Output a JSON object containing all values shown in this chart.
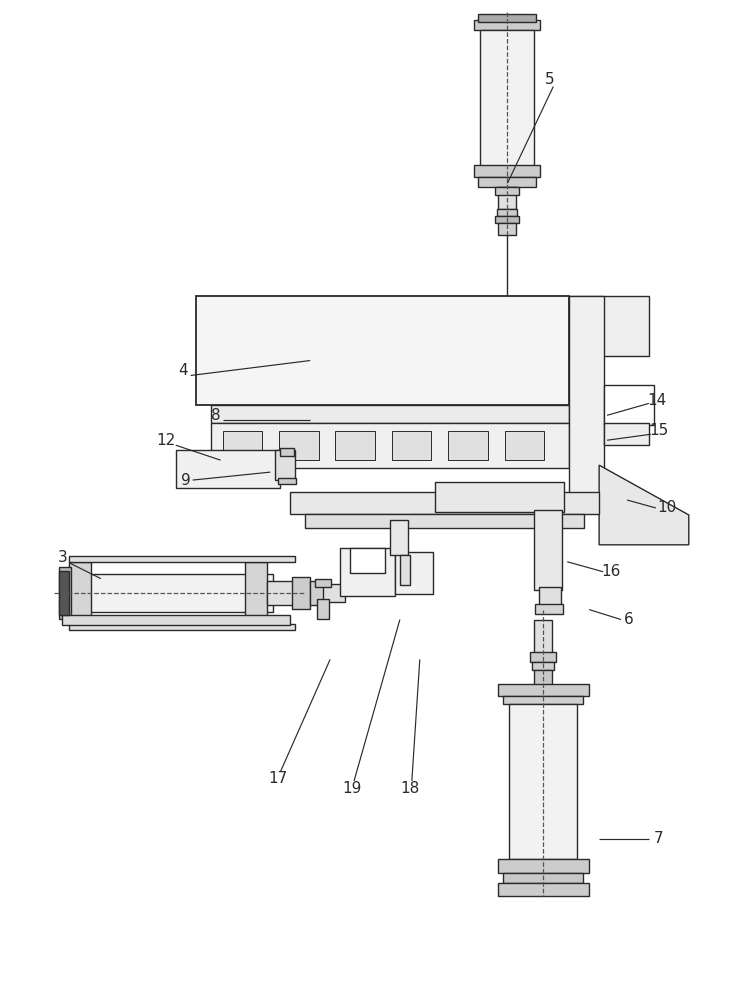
{
  "bg_color": "#ffffff",
  "lc": "#2a2a2a",
  "lw": 1.0,
  "figsize": [
    7.35,
    10.0
  ],
  "dpi": 100
}
